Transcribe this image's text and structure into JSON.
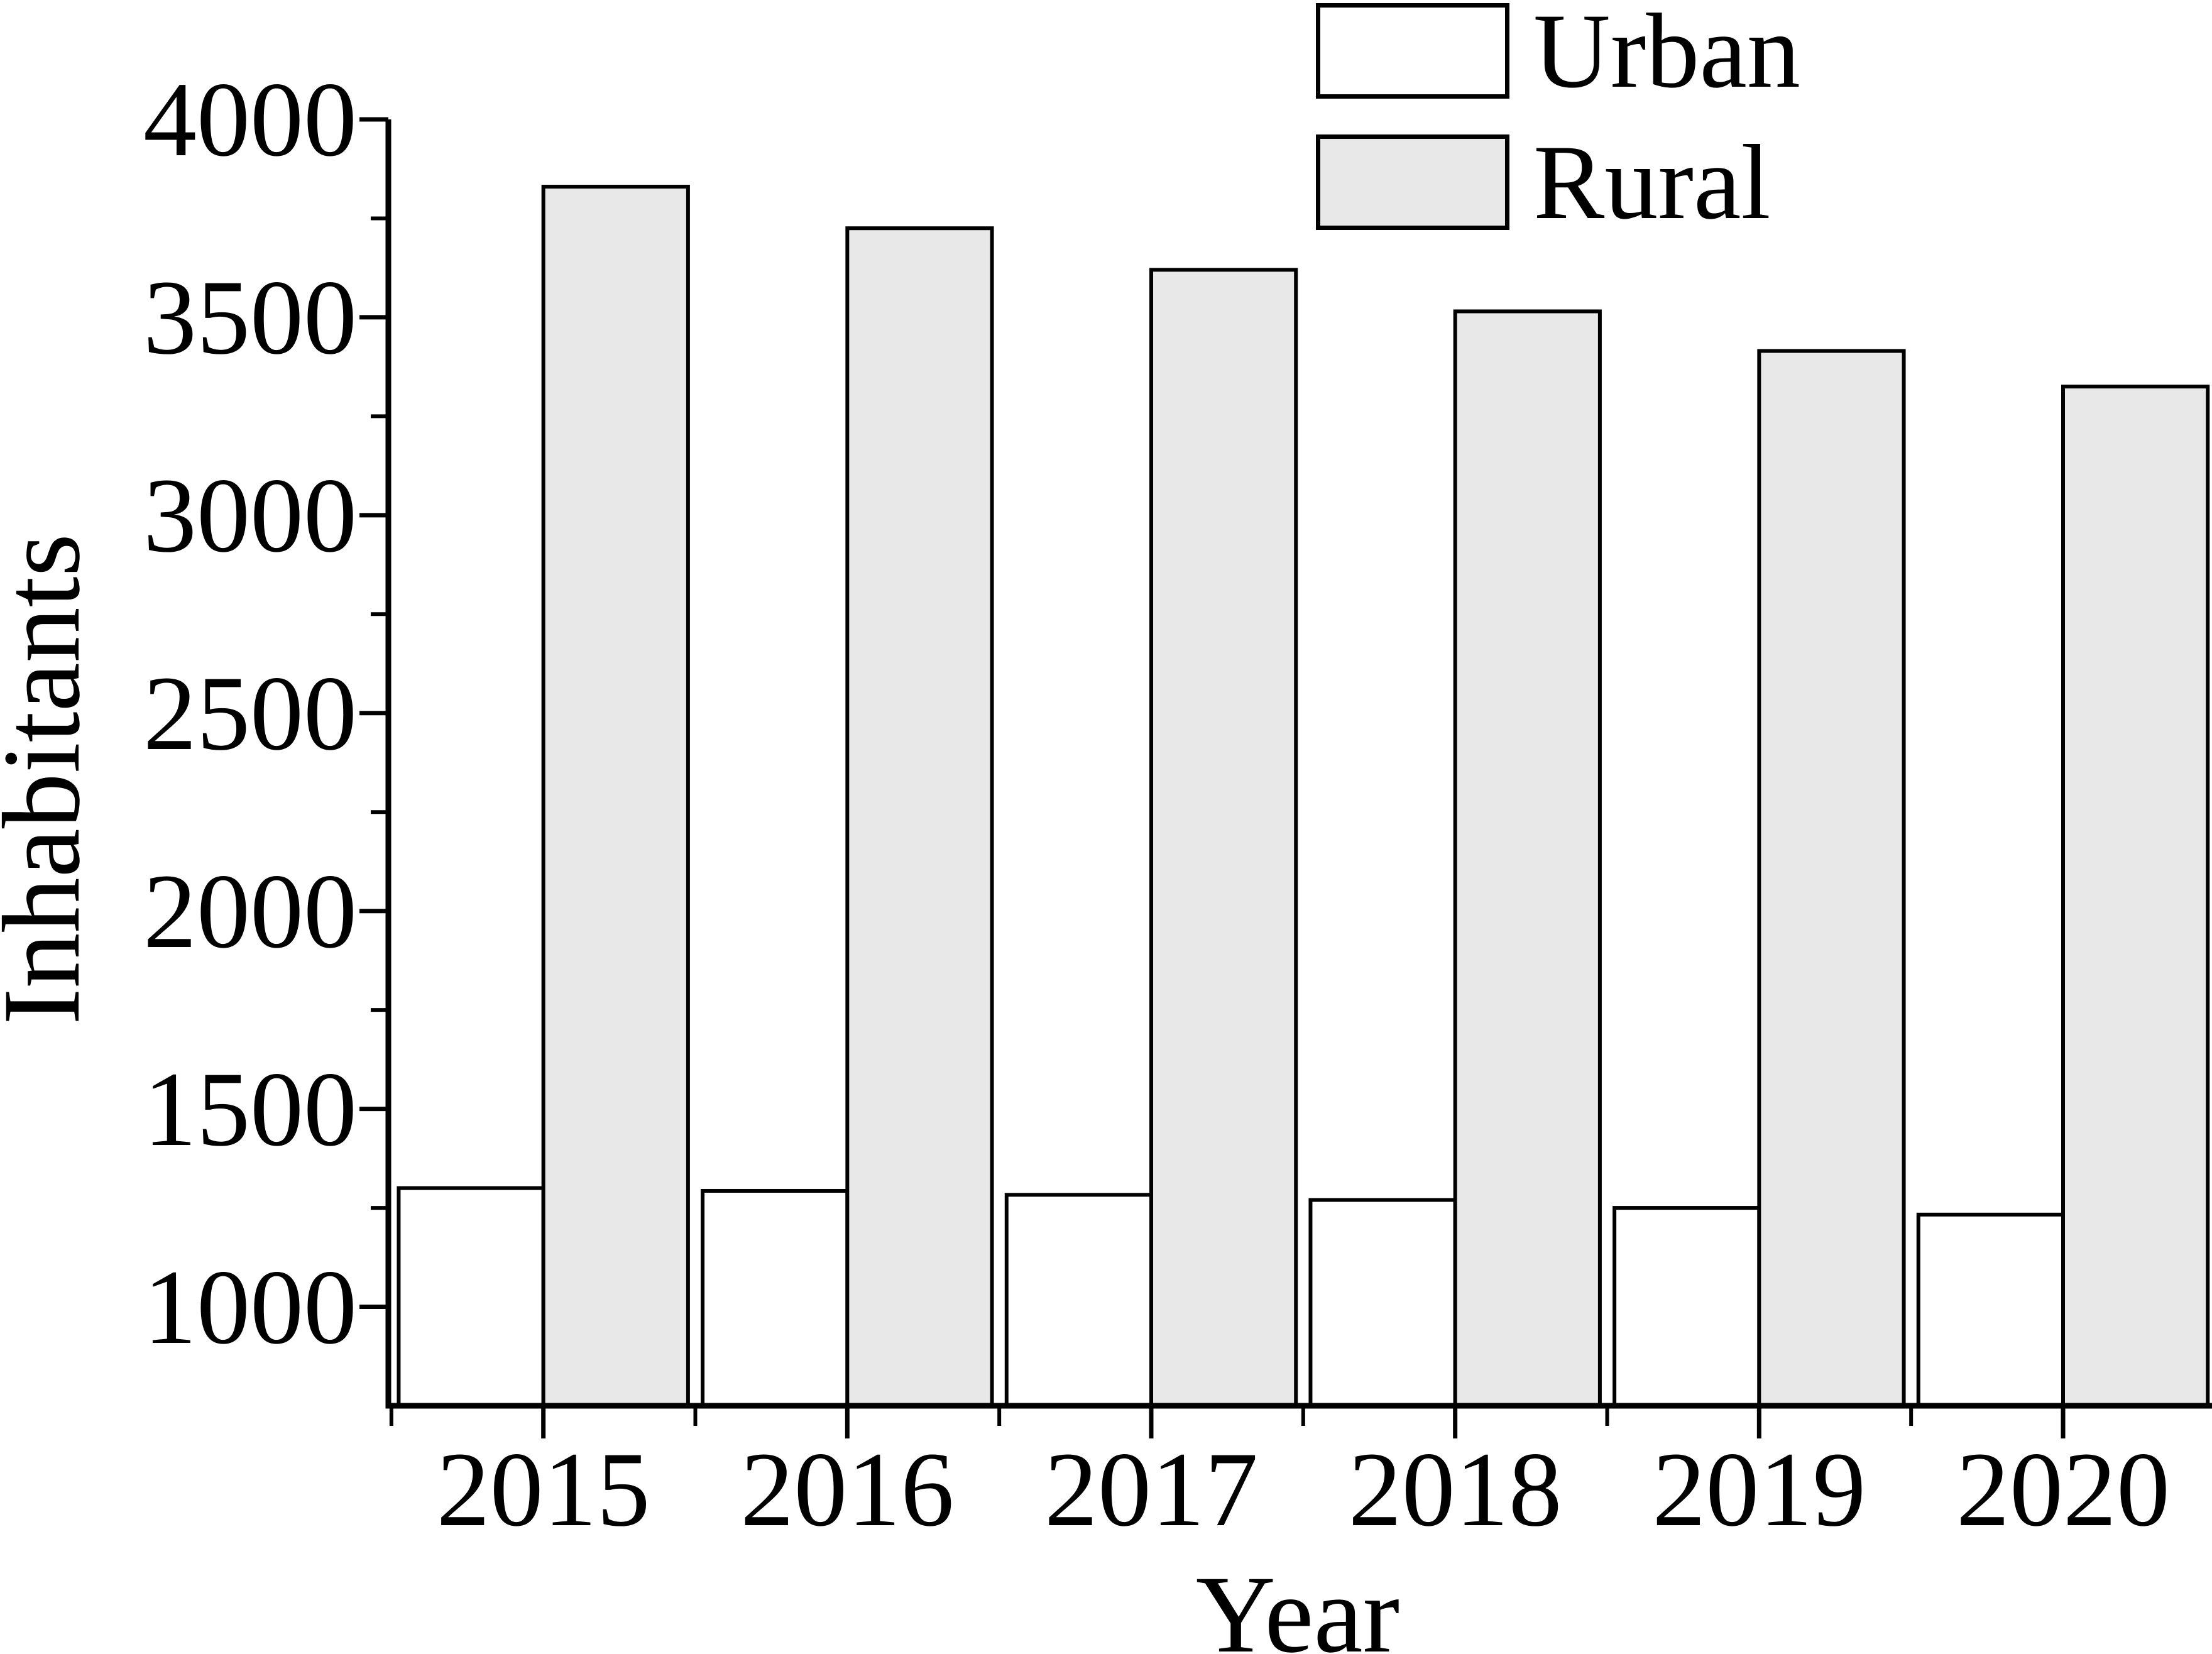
{
  "chart_data": {
    "type": "bar",
    "title": "",
    "xlabel": "Year",
    "ylabel": "Inhabitants",
    "categories": [
      "2015",
      "2016",
      "2017",
      "2018",
      "2019",
      "2020"
    ],
    "series": [
      {
        "name": "Urban",
        "fill": "#ffffff",
        "values": [
          1300,
          1293,
          1283,
          1270,
          1250,
          1233
        ]
      },
      {
        "name": "Rural",
        "fill": "#e8e8e8",
        "values": [
          3830,
          3725,
          3620,
          3515,
          3415,
          3325
        ]
      }
    ],
    "ylim": [
      750,
      4000
    ],
    "xlim": [
      2014.49,
      2020.49
    ],
    "yticks_major": [
      1000,
      1500,
      2000,
      2500,
      3000,
      3500,
      4000
    ],
    "yticks_minor": [
      1250,
      1750,
      2250,
      2750,
      3250,
      3750
    ],
    "xticks_major": [
      2015,
      2016,
      2017,
      2018,
      2019,
      2020
    ],
    "xticks_minor": [
      2014.5,
      2015.5,
      2016.5,
      2017.5,
      2018.5,
      2019.5,
      2020.5
    ],
    "bar_width_years": 0.476,
    "grid": false,
    "legend_position": "top-right",
    "colors": {
      "edge": "#000000",
      "axis": "#000000",
      "background": "#ffffff"
    }
  }
}
